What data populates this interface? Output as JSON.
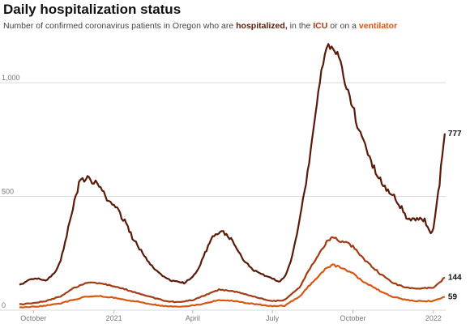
{
  "title": "Daily hospitalization status",
  "subtitle": {
    "part1": "Number of confirmed coronavirus patients in Oregon who are ",
    "hospitalized": "hospitalized,",
    "part2": " in the ",
    "icu": "ICU",
    "part3": " or on a ",
    "ventilator": "ventilator"
  },
  "colors": {
    "hospitalized": "#5b1a08",
    "icu": "#a33b12",
    "ventilator": "#d9560f",
    "grid": "#d9d9d9",
    "axis_text": "#777777"
  },
  "chart_data": {
    "type": "line",
    "x_type": "date",
    "xlim": [
      "2020-09-15",
      "2022-01-15"
    ],
    "ylim": [
      0,
      1200
    ],
    "y_ticks": [
      {
        "value": 0,
        "label": "0"
      },
      {
        "value": 500,
        "label": "500"
      },
      {
        "value": 1000,
        "label": "1,000"
      }
    ],
    "x_ticks": [
      {
        "date": "2020-10-01",
        "label": "October"
      },
      {
        "date": "2021-01-01",
        "label": "2021"
      },
      {
        "date": "2021-04-01",
        "label": "April"
      },
      {
        "date": "2021-07-01",
        "label": "July"
      },
      {
        "date": "2021-10-01",
        "label": "October"
      },
      {
        "date": "2022-01-01",
        "label": "2022"
      }
    ],
    "grid": true,
    "series": [
      {
        "key": "hospitalized",
        "end_label": "777",
        "points": [
          [
            "2020-09-15",
            110
          ],
          [
            "2020-09-25",
            130
          ],
          [
            "2020-10-05",
            140
          ],
          [
            "2020-10-15",
            130
          ],
          [
            "2020-10-25",
            165
          ],
          [
            "2020-11-01",
            215
          ],
          [
            "2020-11-08",
            330
          ],
          [
            "2020-11-15",
            450
          ],
          [
            "2020-11-22",
            555
          ],
          [
            "2020-11-30",
            580
          ],
          [
            "2020-12-07",
            570
          ],
          [
            "2020-12-15",
            545
          ],
          [
            "2020-12-22",
            500
          ],
          [
            "2021-01-01",
            470
          ],
          [
            "2021-01-08",
            420
          ],
          [
            "2021-01-15",
            380
          ],
          [
            "2021-01-22",
            320
          ],
          [
            "2021-02-01",
            260
          ],
          [
            "2021-02-08",
            220
          ],
          [
            "2021-02-15",
            190
          ],
          [
            "2021-02-22",
            160
          ],
          [
            "2021-03-01",
            140
          ],
          [
            "2021-03-08",
            130
          ],
          [
            "2021-03-15",
            125
          ],
          [
            "2021-03-22",
            120
          ],
          [
            "2021-04-01",
            145
          ],
          [
            "2021-04-08",
            190
          ],
          [
            "2021-04-15",
            250
          ],
          [
            "2021-04-22",
            310
          ],
          [
            "2021-04-29",
            340
          ],
          [
            "2021-05-06",
            345
          ],
          [
            "2021-05-13",
            320
          ],
          [
            "2021-05-20",
            280
          ],
          [
            "2021-05-27",
            230
          ],
          [
            "2021-06-03",
            200
          ],
          [
            "2021-06-10",
            175
          ],
          [
            "2021-06-17",
            160
          ],
          [
            "2021-06-24",
            150
          ],
          [
            "2021-07-01",
            140
          ],
          [
            "2021-07-08",
            125
          ],
          [
            "2021-07-15",
            145
          ],
          [
            "2021-07-22",
            210
          ],
          [
            "2021-07-29",
            330
          ],
          [
            "2021-08-05",
            480
          ],
          [
            "2021-08-12",
            650
          ],
          [
            "2021-08-19",
            850
          ],
          [
            "2021-08-26",
            1050
          ],
          [
            "2021-09-01",
            1150
          ],
          [
            "2021-09-05",
            1170
          ],
          [
            "2021-09-10",
            1130
          ],
          [
            "2021-09-15",
            1100
          ],
          [
            "2021-09-22",
            1000
          ],
          [
            "2021-09-29",
            920
          ],
          [
            "2021-10-06",
            820
          ],
          [
            "2021-10-13",
            750
          ],
          [
            "2021-10-20",
            670
          ],
          [
            "2021-10-27",
            610
          ],
          [
            "2021-11-03",
            560
          ],
          [
            "2021-11-10",
            520
          ],
          [
            "2021-11-17",
            500
          ],
          [
            "2021-11-24",
            460
          ],
          [
            "2021-12-01",
            410
          ],
          [
            "2021-12-08",
            395
          ],
          [
            "2021-12-15",
            400
          ],
          [
            "2021-12-22",
            395
          ],
          [
            "2021-12-29",
            340
          ],
          [
            "2022-01-01",
            360
          ],
          [
            "2022-01-05",
            470
          ],
          [
            "2022-01-08",
            560
          ],
          [
            "2022-01-11",
            680
          ],
          [
            "2022-01-14",
            777
          ]
        ]
      },
      {
        "key": "icu",
        "end_label": "144",
        "points": [
          [
            "2020-09-15",
            25
          ],
          [
            "2020-10-01",
            30
          ],
          [
            "2020-10-15",
            40
          ],
          [
            "2020-11-01",
            60
          ],
          [
            "2020-11-15",
            95
          ],
          [
            "2020-12-01",
            120
          ],
          [
            "2020-12-15",
            120
          ],
          [
            "2021-01-01",
            105
          ],
          [
            "2021-01-15",
            90
          ],
          [
            "2021-02-01",
            70
          ],
          [
            "2021-02-15",
            55
          ],
          [
            "2021-03-01",
            40
          ],
          [
            "2021-03-15",
            35
          ],
          [
            "2021-04-01",
            45
          ],
          [
            "2021-04-15",
            65
          ],
          [
            "2021-05-01",
            90
          ],
          [
            "2021-05-15",
            85
          ],
          [
            "2021-06-01",
            70
          ],
          [
            "2021-06-15",
            55
          ],
          [
            "2021-07-01",
            40
          ],
          [
            "2021-07-15",
            45
          ],
          [
            "2021-08-01",
            100
          ],
          [
            "2021-08-15",
            200
          ],
          [
            "2021-09-01",
            300
          ],
          [
            "2021-09-08",
            325
          ],
          [
            "2021-09-15",
            310
          ],
          [
            "2021-10-01",
            280
          ],
          [
            "2021-10-15",
            220
          ],
          [
            "2021-11-01",
            160
          ],
          [
            "2021-11-15",
            120
          ],
          [
            "2021-12-01",
            100
          ],
          [
            "2021-12-15",
            95
          ],
          [
            "2022-01-01",
            100
          ],
          [
            "2022-01-08",
            120
          ],
          [
            "2022-01-14",
            144
          ]
        ]
      },
      {
        "key": "ventilator",
        "end_label": "59",
        "points": [
          [
            "2020-09-15",
            12
          ],
          [
            "2020-10-01",
            15
          ],
          [
            "2020-10-15",
            20
          ],
          [
            "2020-11-01",
            30
          ],
          [
            "2020-11-15",
            45
          ],
          [
            "2020-12-01",
            60
          ],
          [
            "2020-12-15",
            62
          ],
          [
            "2021-01-01",
            55
          ],
          [
            "2021-01-15",
            45
          ],
          [
            "2021-02-01",
            35
          ],
          [
            "2021-02-15",
            25
          ],
          [
            "2021-03-01",
            18
          ],
          [
            "2021-03-15",
            15
          ],
          [
            "2021-04-01",
            20
          ],
          [
            "2021-04-15",
            30
          ],
          [
            "2021-05-01",
            45
          ],
          [
            "2021-05-15",
            42
          ],
          [
            "2021-06-01",
            32
          ],
          [
            "2021-06-15",
            25
          ],
          [
            "2021-07-01",
            18
          ],
          [
            "2021-07-15",
            20
          ],
          [
            "2021-08-01",
            60
          ],
          [
            "2021-08-15",
            120
          ],
          [
            "2021-09-01",
            185
          ],
          [
            "2021-09-08",
            200
          ],
          [
            "2021-09-15",
            190
          ],
          [
            "2021-10-01",
            160
          ],
          [
            "2021-10-15",
            120
          ],
          [
            "2021-11-01",
            85
          ],
          [
            "2021-11-15",
            60
          ],
          [
            "2021-12-01",
            45
          ],
          [
            "2021-12-15",
            40
          ],
          [
            "2022-01-01",
            40
          ],
          [
            "2022-01-08",
            50
          ],
          [
            "2022-01-14",
            59
          ]
        ]
      }
    ]
  }
}
